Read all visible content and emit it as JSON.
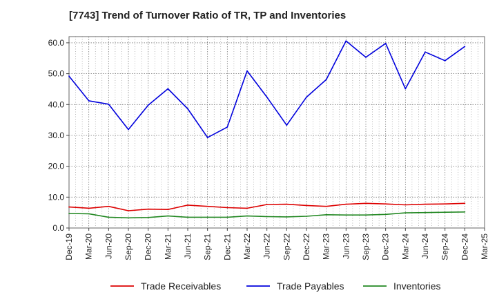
{
  "chart_data": {
    "type": "line",
    "title": "[7743]  Trend of Turnover Ratio of TR, TP and Inventories",
    "xlabel": "",
    "ylabel": "",
    "ylim": [
      0,
      62
    ],
    "yticks": [
      0,
      10,
      20,
      30,
      40,
      50,
      60
    ],
    "ytick_labels": [
      "0.0",
      "10.0",
      "20.0",
      "30.0",
      "40.0",
      "50.0",
      "60.0"
    ],
    "x_ticks": [
      "Dec-19",
      "Mar-20",
      "Jun-20",
      "Sep-20",
      "Dec-20",
      "Mar-21",
      "Jun-21",
      "Sep-21",
      "Dec-21",
      "Mar-22",
      "Jun-22",
      "Sep-22",
      "Dec-22",
      "Mar-23",
      "Jun-23",
      "Sep-23",
      "Dec-23",
      "Mar-24",
      "Jun-24",
      "Sep-24",
      "Dec-24",
      "Mar-25"
    ],
    "categories": [
      "Dec-19",
      "Mar-20",
      "Jun-20",
      "Sep-20",
      "Dec-20",
      "Mar-21",
      "Jun-21",
      "Sep-21",
      "Dec-21",
      "Mar-22",
      "Jun-22",
      "Sep-22",
      "Dec-22",
      "Mar-23",
      "Jun-23",
      "Sep-23",
      "Dec-23",
      "Mar-24",
      "Jun-24",
      "Sep-24",
      "Dec-24"
    ],
    "grid": true,
    "legend_position": "bottom",
    "series": [
      {
        "name": "Trade Receivables",
        "color": "#dd0000",
        "values": [
          6.8,
          6.4,
          7.0,
          5.6,
          6.1,
          6.0,
          7.4,
          7.0,
          6.6,
          6.4,
          7.6,
          7.7,
          7.3,
          7.0,
          7.7,
          8.0,
          7.8,
          7.5,
          7.7,
          7.8,
          8.0
        ]
      },
      {
        "name": "Trade Payables",
        "color": "#0000dd",
        "values": [
          49.2,
          41.2,
          40.1,
          31.9,
          39.8,
          45.1,
          38.6,
          29.3,
          32.7,
          50.9,
          42.4,
          33.3,
          42.4,
          48.1,
          60.6,
          55.3,
          59.8,
          45.1,
          57.0,
          54.2,
          58.8
        ]
      },
      {
        "name": "Inventories",
        "color": "#228822",
        "values": [
          4.7,
          4.6,
          3.5,
          3.3,
          3.4,
          3.9,
          3.5,
          3.5,
          3.5,
          3.9,
          3.7,
          3.6,
          3.8,
          4.3,
          4.2,
          4.2,
          4.4,
          4.9,
          5.0,
          5.1,
          5.2
        ]
      }
    ]
  }
}
